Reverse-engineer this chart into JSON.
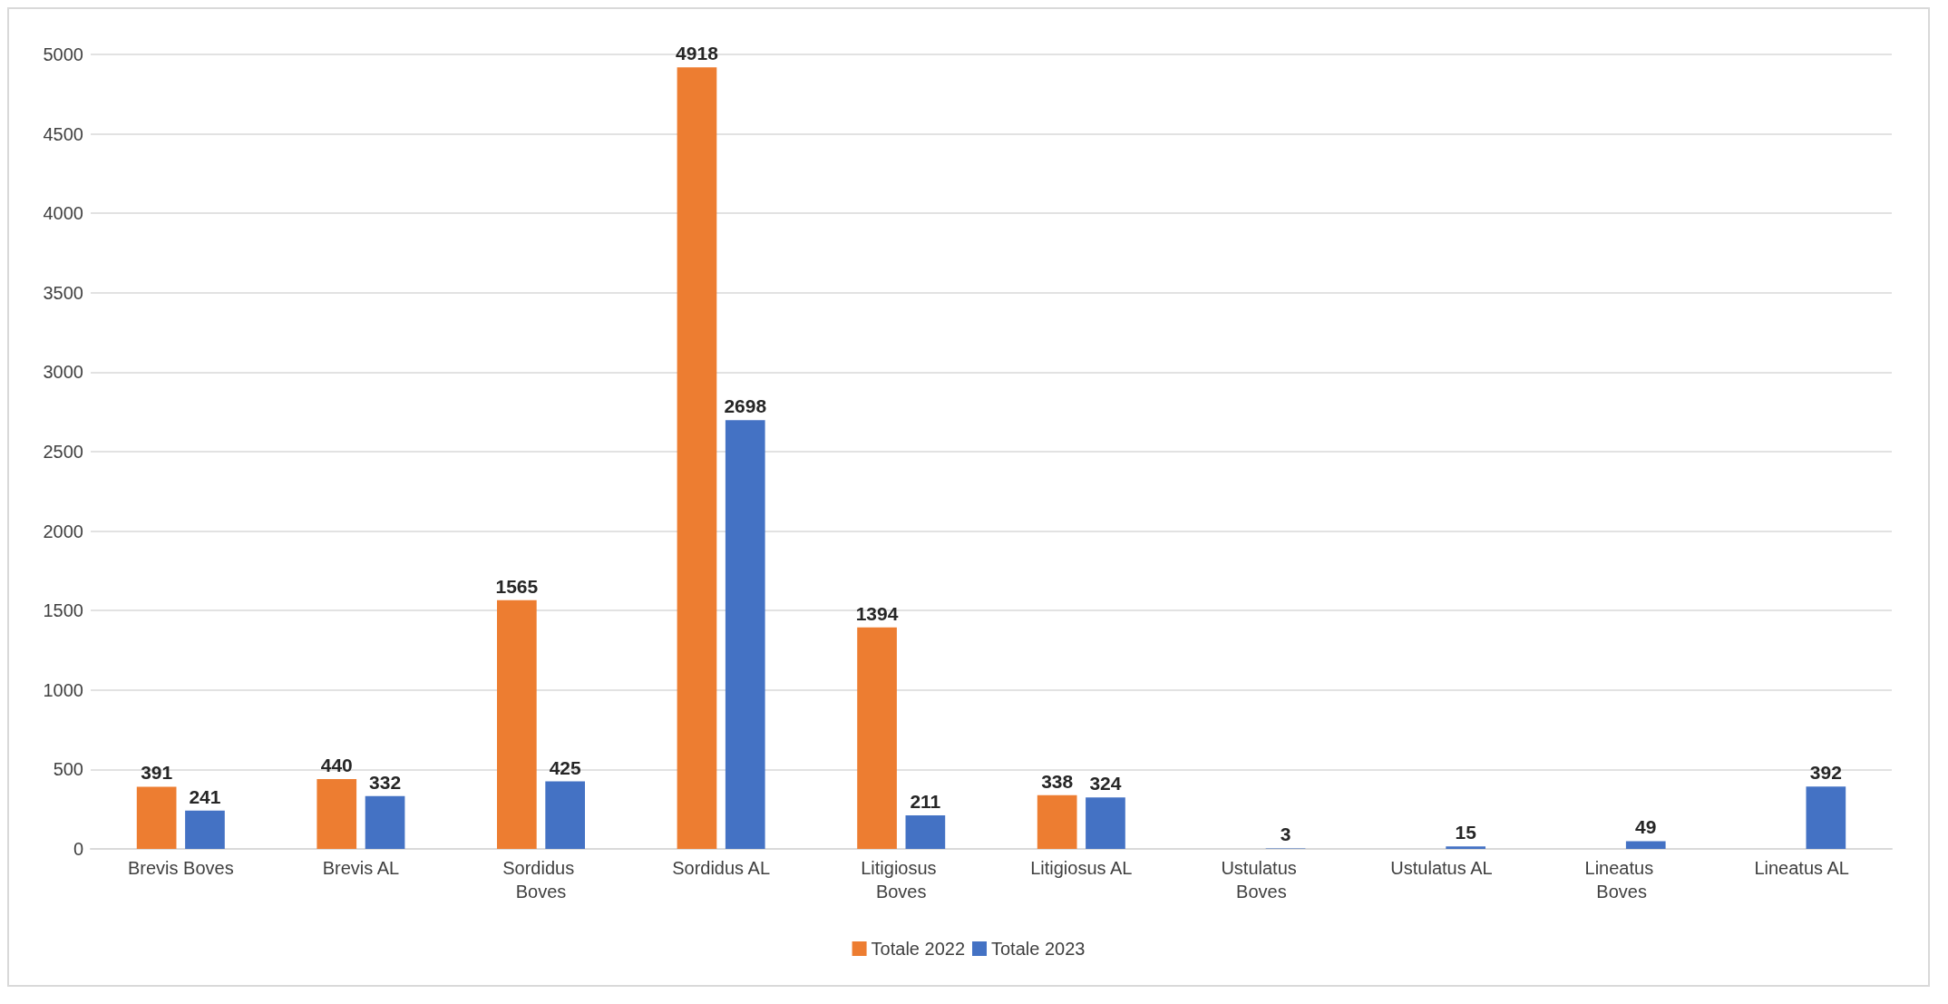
{
  "chart_data": {
    "type": "bar",
    "categories": [
      "Brevis Boves",
      "Brevis AL",
      "Sordidus Boves",
      "Sordidus AL",
      "Litigiosus Boves",
      "Litigiosus AL",
      "Ustulatus Boves",
      "Ustulatus AL",
      "Lineatus Boves",
      "Lineatus AL"
    ],
    "series": [
      {
        "name": "Totale 2022",
        "color": "#ed7d31",
        "values": [
          391,
          440,
          1565,
          4918,
          1394,
          338,
          null,
          null,
          null,
          null
        ]
      },
      {
        "name": "Totale 2023",
        "color": "#4472c4",
        "values": [
          241,
          332,
          425,
          2698,
          211,
          324,
          3,
          15,
          49,
          392
        ]
      }
    ],
    "ylim": [
      0,
      5000
    ],
    "yticks": [
      0,
      500,
      1000,
      1500,
      2000,
      2500,
      3000,
      3500,
      4000,
      4500,
      5000
    ],
    "grid": "y",
    "legend": "bottom",
    "data_labels": true
  }
}
